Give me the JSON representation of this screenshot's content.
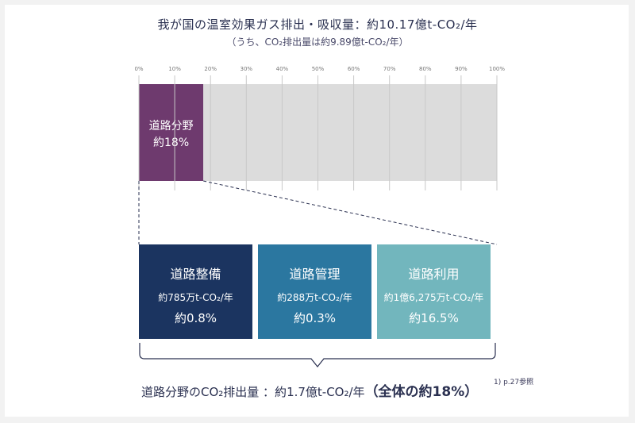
{
  "header": {
    "title": "我が国の温室効果ガス排出・吸収量：約10.17億t-CO₂/年",
    "subtitle": "（うち、CO₂排出量は約9.89億t-CO₂/年）"
  },
  "chart_data": {
    "type": "bar",
    "orientation": "horizontal-stacked",
    "title": "我が国の温室効果ガス排出・吸収量：約10.17億t-CO₂/年",
    "subtitle": "（うち、CO₂排出量は約9.89億t-CO₂/年）",
    "xlim": [
      0,
      100
    ],
    "ticks": [
      "0%",
      "10%",
      "20%",
      "30%",
      "40%",
      "50%",
      "60%",
      "70%",
      "80%",
      "90%",
      "100%"
    ],
    "grid": true,
    "segments": [
      {
        "label_lines": [
          "道路分野",
          "約18%"
        ],
        "value": 18,
        "color": "#6e3a6e"
      },
      {
        "label_lines": [],
        "value": 82,
        "color": "#dcdcdc"
      }
    ],
    "breakdown": [
      {
        "name": "道路整備",
        "amount": "約785万t-CO₂/年",
        "share": "約0.8%",
        "value": 0.8,
        "color": "#1b3460"
      },
      {
        "name": "道路管理",
        "amount": "約288万t-CO₂/年",
        "share": "約0.3%",
        "value": 0.3,
        "color": "#2b77a0"
      },
      {
        "name": "道路利用",
        "amount": "約1億6,275万t-CO₂/年",
        "share": "約16.5%",
        "value": 16.5,
        "color": "#72b6bd"
      }
    ]
  },
  "footer": {
    "text": "道路分野のCO₂排出量 ：約1.7億t-CO₂/年",
    "highlight": "（全体の約18%）",
    "note": "1) p.27参照"
  }
}
